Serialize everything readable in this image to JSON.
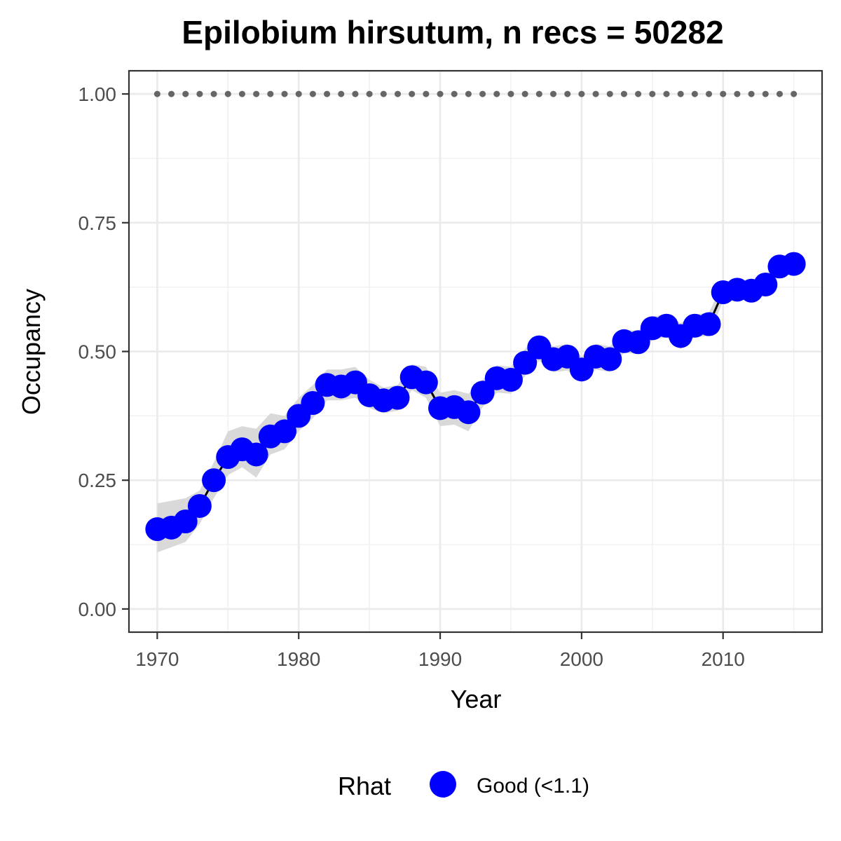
{
  "chart_data": {
    "type": "line",
    "title": "Epilobium hirsutum, n recs = 50282",
    "xlabel": "Year",
    "ylabel": "Occupancy",
    "xlim": [
      1968,
      2017
    ],
    "ylim": [
      -0.045,
      1.045
    ],
    "x_ticks": [
      1970,
      1980,
      1990,
      2000,
      2010
    ],
    "x_tick_labels": [
      "1970",
      "1980",
      "1990",
      "2000",
      "2010"
    ],
    "y_ticks": [
      0,
      0.25,
      0.5,
      0.75,
      1
    ],
    "y_tick_labels": [
      "0.00",
      "0.25",
      "0.50",
      "0.75",
      "1.00"
    ],
    "grid": true,
    "legend": {
      "title": "Rhat",
      "position": "bottom",
      "entries": [
        {
          "label": "Good (<1.1)",
          "color": "#0000ff"
        }
      ]
    },
    "colors": {
      "points": "#0000ff",
      "line": "#000000",
      "ribbon": "#d9d9d9",
      "reference": "#666666"
    },
    "reference_line": {
      "y": 1.0,
      "style": "dotted"
    },
    "series": [
      {
        "x": [
          1970,
          1971,
          1972,
          1973,
          1974,
          1975,
          1976,
          1977,
          1978,
          1979,
          1980,
          1981,
          1982,
          1983,
          1984,
          1985,
          1986,
          1987,
          1988,
          1989,
          1990,
          1991,
          1992,
          1993,
          1994,
          1995,
          1996,
          1997,
          1998,
          1999,
          2000,
          2001,
          2002,
          2003,
          2004,
          2005,
          2006,
          2007,
          2008,
          2009,
          2010,
          2011,
          2012,
          2013,
          2014,
          2015
        ],
        "y": [
          0.155,
          0.158,
          0.17,
          0.2,
          0.25,
          0.295,
          0.31,
          0.3,
          0.335,
          0.345,
          0.375,
          0.4,
          0.435,
          0.432,
          0.44,
          0.415,
          0.405,
          0.41,
          0.45,
          0.44,
          0.39,
          0.392,
          0.382,
          0.42,
          0.448,
          0.445,
          0.478,
          0.508,
          0.485,
          0.49,
          0.465,
          0.49,
          0.485,
          0.52,
          0.518,
          0.545,
          0.55,
          0.53,
          0.55,
          0.553,
          0.615,
          0.62,
          0.618,
          0.63,
          0.665,
          0.67
        ],
        "lower": [
          0.11,
          0.12,
          0.13,
          0.165,
          0.215,
          0.26,
          0.275,
          0.255,
          0.3,
          0.31,
          0.345,
          0.37,
          0.405,
          0.405,
          0.41,
          0.39,
          0.38,
          0.385,
          0.425,
          0.41,
          0.355,
          0.358,
          0.345,
          0.392,
          0.42,
          0.418,
          0.452,
          0.482,
          0.46,
          0.463,
          0.44,
          0.465,
          0.46,
          0.498,
          0.495,
          0.522,
          0.528,
          0.505,
          0.528,
          0.53,
          0.598,
          0.602,
          0.6,
          0.612,
          0.65,
          0.655
        ],
        "upper": [
          0.205,
          0.21,
          0.215,
          0.23,
          0.285,
          0.345,
          0.355,
          0.35,
          0.38,
          0.375,
          0.41,
          0.435,
          0.465,
          0.465,
          0.47,
          0.445,
          0.43,
          0.435,
          0.475,
          0.47,
          0.42,
          0.425,
          0.418,
          0.445,
          0.473,
          0.47,
          0.505,
          0.532,
          0.51,
          0.515,
          0.49,
          0.515,
          0.51,
          0.542,
          0.54,
          0.568,
          0.572,
          0.555,
          0.572,
          0.575,
          0.632,
          0.637,
          0.635,
          0.648,
          0.68,
          0.685
        ],
        "reference": [
          1,
          1,
          1,
          1,
          1,
          1,
          1,
          1,
          1,
          1,
          1,
          1,
          1,
          1,
          1,
          1,
          1,
          1,
          1,
          1,
          1,
          1,
          1,
          1,
          1,
          1,
          1,
          1,
          1,
          1,
          1,
          1,
          1,
          1,
          1,
          1,
          1,
          1,
          1,
          1,
          1,
          1,
          1,
          1,
          1,
          1
        ]
      }
    ]
  }
}
